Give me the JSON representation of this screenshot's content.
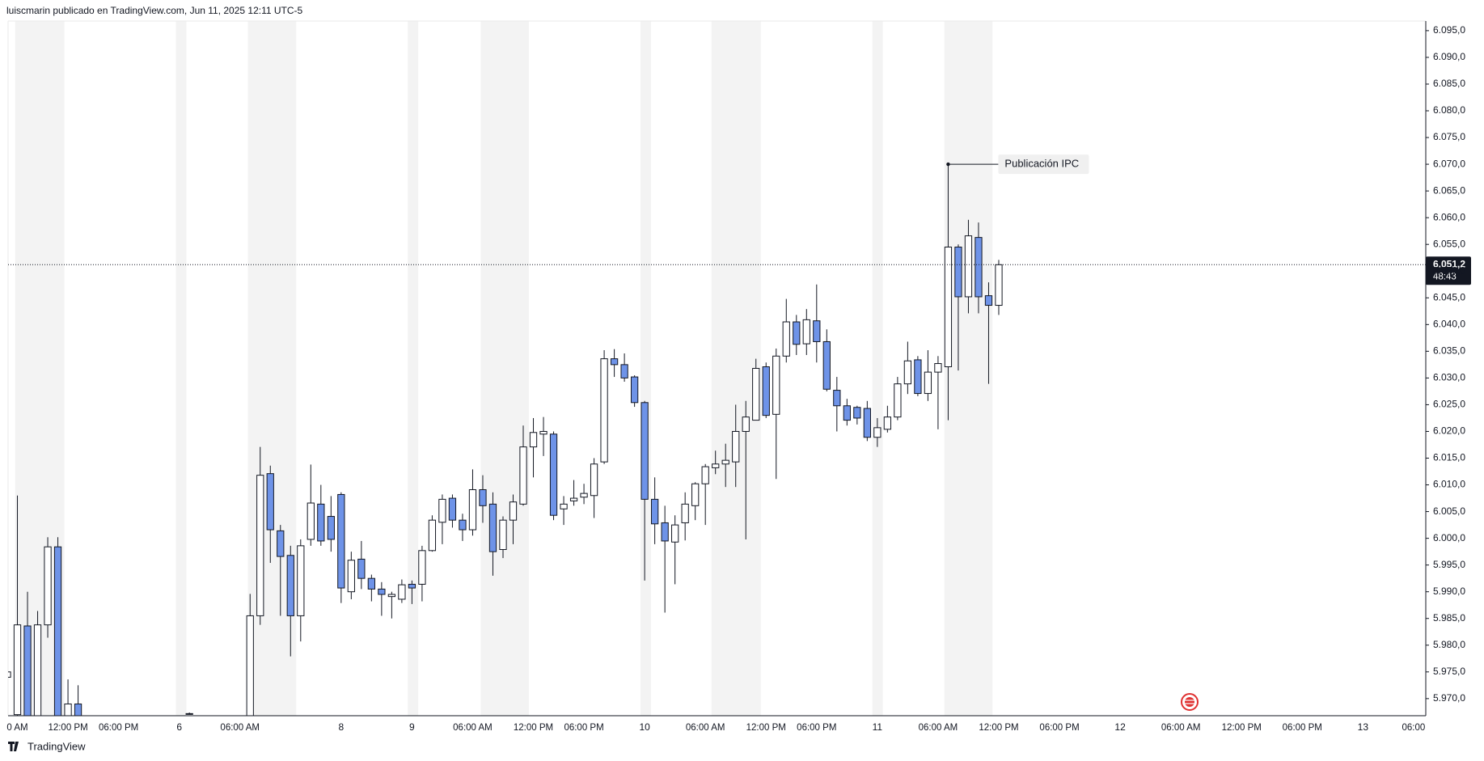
{
  "header": "luiscmarin publicado en TradingView.com, Jun 11, 2025 12:11 UTC-5",
  "footer": "TradingView",
  "chart_data": {
    "type": "candlestick",
    "up_color": "#ffffff",
    "down_color": "#6e93e8",
    "grid": false,
    "ylim": [
      5966.8,
      6096.8
    ],
    "yticks": [
      {
        "value": 5970,
        "label": "5.970,0"
      },
      {
        "value": 5975,
        "label": "5.975,0"
      },
      {
        "value": 5980,
        "label": "5.980,0"
      },
      {
        "value": 5985,
        "label": "5.985,0"
      },
      {
        "value": 5990,
        "label": "5.990,0"
      },
      {
        "value": 5995,
        "label": "5.995,0"
      },
      {
        "value": 6000,
        "label": "6.000,0"
      },
      {
        "value": 6005,
        "label": "6.005,0"
      },
      {
        "value": 6010,
        "label": "6.010,0"
      },
      {
        "value": 6015,
        "label": "6.015,0"
      },
      {
        "value": 6020,
        "label": "6.020,0"
      },
      {
        "value": 6025,
        "label": "6.025,0"
      },
      {
        "value": 6030,
        "label": "6.030,0"
      },
      {
        "value": 6035,
        "label": "6.035,0"
      },
      {
        "value": 6040,
        "label": "6.040,0"
      },
      {
        "value": 6045,
        "label": "6.045,0"
      },
      {
        "value": 6050,
        "label": "6.050,0"
      },
      {
        "value": 6055,
        "label": "6.055,0"
      },
      {
        "value": 6060,
        "label": "6.060,0"
      },
      {
        "value": 6065,
        "label": "6.065,0"
      },
      {
        "value": 6070,
        "label": "6.070,0"
      },
      {
        "value": 6075,
        "label": "6.075,0"
      },
      {
        "value": 6080,
        "label": "6.080,0"
      },
      {
        "value": 6085,
        "label": "6.085,0"
      },
      {
        "value": 6090,
        "label": "6.090,0"
      },
      {
        "value": 6095,
        "label": "6.095,0"
      }
    ],
    "last_price": {
      "value": 6051.2,
      "label": "6.051,2"
    },
    "countdown": "48:43",
    "annotations": [
      {
        "text": "Publicación IPC",
        "x_index": 93,
        "y": 6070.0
      }
    ],
    "categories": [
      null,
      "0 AM",
      null,
      null,
      null,
      null,
      "12:00 PM",
      null,
      null,
      null,
      null,
      "06:00 PM",
      null,
      null,
      null,
      null,
      null,
      "6",
      null,
      null,
      null,
      null,
      null,
      "06:00 AM",
      null,
      null,
      null,
      null,
      null,
      null,
      null,
      null,
      null,
      "8",
      null,
      null,
      null,
      null,
      null,
      null,
      "9",
      null,
      null,
      null,
      null,
      null,
      "06:00 AM",
      null,
      null,
      null,
      null,
      null,
      "12:00 PM",
      null,
      null,
      null,
      null,
      "06:00 PM",
      null,
      null,
      null,
      null,
      null,
      "10",
      null,
      null,
      null,
      null,
      null,
      "06:00 AM",
      null,
      null,
      null,
      null,
      null,
      "12:00 PM",
      null,
      null,
      null,
      null,
      "06:00 PM",
      null,
      null,
      null,
      null,
      null,
      "11",
      null,
      null,
      null,
      null,
      null,
      "06:00 AM",
      null,
      null,
      null,
      null,
      null,
      "12:00 PM",
      null,
      null,
      null,
      null,
      null,
      "06:00 PM",
      null,
      null,
      null,
      null,
      null,
      "12",
      null,
      null,
      null,
      null,
      null,
      "06:00 AM",
      null,
      null,
      null,
      null,
      null,
      "12:00 PM",
      null,
      null,
      null,
      null,
      null,
      "06:00 PM",
      null,
      null,
      null,
      null,
      null,
      "13",
      null,
      null,
      null,
      null,
      "06:00",
      null
    ],
    "open": [
      5974,
      5967,
      5983.6,
      5962,
      5983.8,
      5998.4,
      5963,
      5969,
      null,
      null,
      null,
      null,
      null,
      null,
      null,
      null,
      null,
      null,
      5967.1,
      null,
      null,
      null,
      null,
      null,
      5962,
      5985.5,
      6012.1,
      6001.4,
      5996.8,
      5985.5,
      5999.8,
      6006.4,
      6004.1,
      6008.2,
      5990.0,
      5996.1,
      5992.5,
      5990.5,
      5989.1,
      5988.6,
      5991.4,
      5991.4,
      5997.7,
      6003.0,
      6007.5,
      6003.4,
      6001.6,
      6009.1,
      6006.4,
      5997.9,
      6003.4,
      6006.4,
      6017.1,
      6019.5,
      6019.5,
      6005.5,
      6007.0,
      6007.7,
      6008.0,
      6014.3,
      6033.6,
      6032.5,
      6030.2,
      6025.4,
      6007.3,
      6002.9,
      5999.3,
      6002.9,
      6006.1,
      6010.2,
      6013.2,
      6013.9,
      6014.3,
      6020.0,
      6022.1,
      6032.1,
      6023.2,
      6034.1,
      6040.5,
      6036.4,
      6040.7,
      6036.8,
      6027.7,
      6024.8,
      6024.5,
      6024.3,
      6018.9,
      6020.4,
      6022.7,
      6028.9,
      6033.4,
      6027.1,
      6031.1,
      6032.1,
      6054.5,
      6045.2,
      6056.3,
      6045.4,
      6043.6,
      null,
      null,
      null,
      null,
      null,
      null,
      null,
      null,
      null,
      null,
      null,
      null,
      null,
      null,
      null,
      null,
      null,
      null,
      null,
      null,
      null,
      null,
      null,
      null,
      null,
      null,
      null,
      null,
      null,
      null,
      null,
      null,
      null,
      null,
      null,
      null,
      null,
      null,
      null,
      null,
      null,
      null
    ],
    "high": [
      5977,
      6008,
      5990,
      5986.4,
      6000.2,
      6000.2,
      5973.6,
      5972.5,
      null,
      null,
      null,
      null,
      null,
      null,
      null,
      null,
      null,
      null,
      5967.4,
      null,
      null,
      null,
      null,
      null,
      5989.6,
      6017.1,
      6013.6,
      6002.5,
      5998.6,
      5999.8,
      6013.8,
      6010.0,
      6007.9,
      6008.6,
      5997.5,
      5999.5,
      5993.2,
      5991.8,
      5990.0,
      5992.3,
      5992.1,
      5998.6,
      6004.3,
      6008.2,
      6008.2,
      6004.6,
      6012.9,
      6011.8,
      6008.6,
      6004.1,
      6008.2,
      6021.1,
      6022.5,
      6022.7,
      6020.0,
      6007.9,
      6010.9,
      6010.2,
      6015.0,
      6035.2,
      6035.4,
      6034.6,
      6030.5,
      6025.7,
      6011.4,
      6006.1,
      6004.3,
      6008.6,
      6010.5,
      6013.9,
      6016.4,
      6017.7,
      6025.0,
      6025.7,
      6033.6,
      6032.9,
      6035.5,
      6044.8,
      6041.8,
      6042.9,
      6047.5,
      6039.1,
      6030.2,
      6026.1,
      6024.8,
      6025.7,
      6022.5,
      6024.8,
      6030.2,
      6036.8,
      6034.1,
      6035.2,
      6034.1,
      6070.0,
      6055.0,
      6059.6,
      6059.1,
      6047.9,
      6052.1,
      null,
      null,
      null,
      null,
      null,
      null,
      null,
      null,
      null,
      null,
      null,
      null,
      null,
      null,
      null,
      null,
      null,
      null,
      null,
      null,
      null,
      null,
      null,
      null,
      null,
      null,
      null,
      null,
      null,
      null,
      null,
      null,
      null,
      null,
      null,
      null,
      null,
      null,
      null,
      null,
      null,
      null
    ],
    "low": [
      5972,
      5960,
      5958,
      5958,
      5981.4,
      5958,
      5960,
      5960,
      null,
      null,
      null,
      null,
      null,
      null,
      null,
      null,
      null,
      null,
      5967.0,
      null,
      null,
      null,
      null,
      null,
      5958,
      5983.8,
      5995.4,
      5985.5,
      5977.9,
      5980.7,
      5998.6,
      5998.6,
      5997.5,
      5987.9,
      5988.6,
      5990.5,
      5988.2,
      5985.5,
      5985.0,
      5987.9,
      5987.7,
      5988.2,
      5997.5,
      5998.9,
      6002.0,
      5999.5,
      6000.5,
      6002.9,
      5993.0,
      5996.3,
      5998.9,
      6006.1,
      6011.4,
      6015.4,
      6003.4,
      6002.5,
      6006.1,
      6006.4,
      6003.8,
      6013.9,
      6030.2,
      6029.3,
      6024.6,
      5992.1,
      5998.9,
      5986.1,
      5991.4,
      5999.6,
      6003.4,
      6002.5,
      6012.0,
      6009.6,
      6009.6,
      5999.8,
      6022.1,
      6022.5,
      6011.1,
      6032.9,
      6034.3,
      6034.3,
      6032.9,
      6027.5,
      6020.0,
      6021.1,
      6021.3,
      6018.2,
      6017.1,
      6019.8,
      6022.1,
      6027.0,
      6026.6,
      6025.7,
      6020.4,
      6022.1,
      6031.4,
      6042.1,
      6042.1,
      6028.9,
      6041.8,
      null,
      null,
      null,
      null,
      null,
      null,
      null,
      null,
      null,
      null,
      null,
      null,
      null,
      null,
      null,
      null,
      null,
      null,
      null,
      null,
      null,
      null,
      null,
      null,
      null,
      null,
      null,
      null,
      null,
      null,
      null,
      null,
      null,
      null,
      null,
      null,
      null,
      null,
      null,
      null,
      null,
      null
    ],
    "close": [
      5975,
      5983.8,
      5962,
      5983.8,
      5998.4,
      5962,
      5969,
      5964,
      null,
      null,
      null,
      null,
      null,
      null,
      null,
      null,
      null,
      null,
      5967.2,
      null,
      null,
      null,
      null,
      null,
      5985.5,
      6011.8,
      6001.6,
      5996.6,
      5985.5,
      5998.6,
      6006.6,
      5999.5,
      5999.8,
      5990.7,
      5995.9,
      5992.5,
      5990.5,
      5989.5,
      5989.5,
      5991.3,
      5990.7,
      5997.7,
      6003.4,
      6007.3,
      6003.4,
      6001.6,
      6009.1,
      6006.1,
      5997.5,
      6003.4,
      6006.8,
      6017.1,
      6019.8,
      6020.0,
      6004.3,
      6006.4,
      6007.5,
      6008.4,
      6013.9,
      6033.6,
      6032.5,
      6030.0,
      6025.4,
      6007.3,
      6002.7,
      5999.5,
      6002.5,
      6006.4,
      6010.2,
      6013.4,
      6013.9,
      6014.6,
      6020.0,
      6022.7,
      6031.8,
      6023.0,
      6034.1,
      6040.5,
      6036.3,
      6040.9,
      6036.8,
      6027.9,
      6024.8,
      6022.1,
      6022.5,
      6018.9,
      6020.7,
      6022.7,
      6028.9,
      6033.2,
      6027.1,
      6031.1,
      6032.7,
      6054.5,
      6045.2,
      6056.6,
      6045.2,
      6043.6,
      6051.2,
      null,
      null,
      null,
      null,
      null,
      null,
      null,
      null,
      null,
      null,
      null,
      null,
      null,
      null,
      null,
      null,
      null,
      null,
      null,
      null,
      null,
      null,
      null,
      null,
      null,
      null,
      null,
      null,
      null,
      null,
      null,
      null,
      null,
      null,
      null,
      null,
      null,
      null,
      null,
      null,
      null,
      null
    ]
  }
}
